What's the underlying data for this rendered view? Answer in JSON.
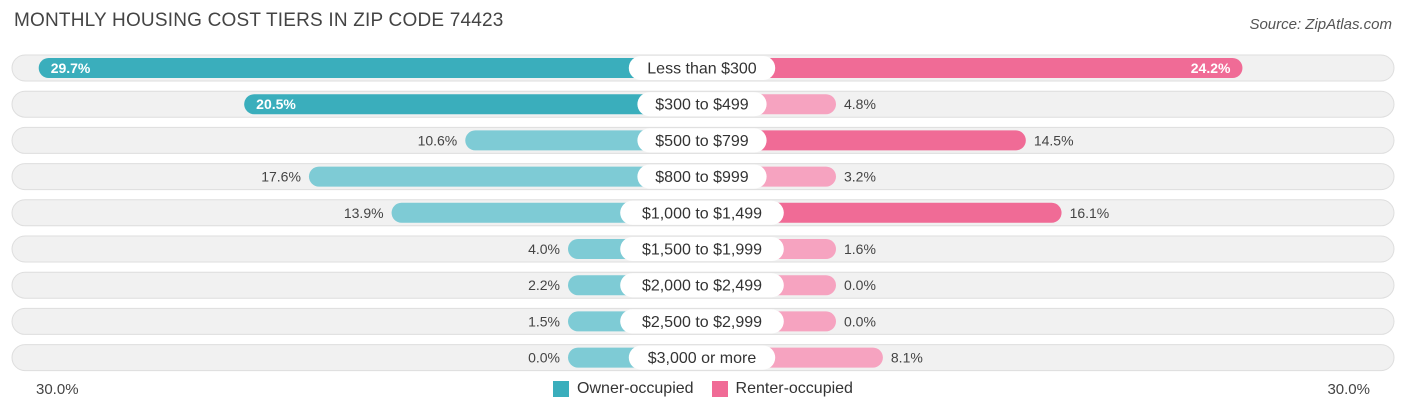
{
  "title": "MONTHLY HOUSING COST TIERS IN ZIP CODE 74423",
  "source": "Source: ZipAtlas.com",
  "colors": {
    "owner": "#3aaebc",
    "owner_light": "#7ecbd5",
    "renter": "#f06b96",
    "renter_light": "#f6a3c0"
  },
  "legend": {
    "owner_label": "Owner-occupied",
    "renter_label": "Renter-occupied"
  },
  "axis": {
    "left_label": "30.0%",
    "right_label": "30.0%"
  },
  "chart_data": {
    "type": "bar",
    "orientation": "diverging-horizontal",
    "title": "MONTHLY HOUSING COST TIERS IN ZIP CODE 74423",
    "categories": [
      "Less than $300",
      "$300 to $499",
      "$500 to $799",
      "$800 to $999",
      "$1,000 to $1,499",
      "$1,500 to $1,999",
      "$2,000 to $2,499",
      "$2,500 to $2,999",
      "$3,000 or more"
    ],
    "series": [
      {
        "name": "Owner-occupied",
        "values": [
          29.7,
          20.5,
          10.6,
          17.6,
          13.9,
          4.0,
          2.2,
          1.5,
          0.0
        ],
        "labels": [
          "29.7%",
          "20.5%",
          "10.6%",
          "17.6%",
          "13.9%",
          "4.0%",
          "2.2%",
          "1.5%",
          "0.0%"
        ]
      },
      {
        "name": "Renter-occupied",
        "values": [
          24.2,
          4.8,
          14.5,
          3.2,
          16.1,
          1.6,
          0.0,
          0.0,
          8.1
        ],
        "labels": [
          "24.2%",
          "4.8%",
          "14.5%",
          "3.2%",
          "16.1%",
          "1.6%",
          "0.0%",
          "0.0%",
          "8.1%"
        ]
      }
    ],
    "xlim": [
      -30,
      30
    ],
    "xlabel": "",
    "ylabel": "",
    "legend": "bottom-center"
  }
}
